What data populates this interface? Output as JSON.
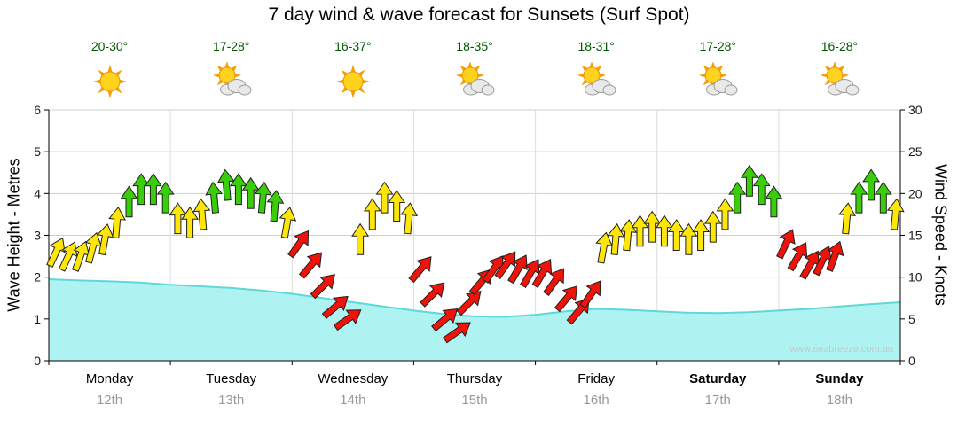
{
  "chart_data": {
    "type": "area",
    "title": "7 day wind & wave forecast for Sunsets (Surf Spot)",
    "watermark": "www.seabreeze.com.au",
    "left_axis": {
      "label": "Wave Height - Metres",
      "min": 0,
      "max": 6,
      "ticks": [
        0,
        1,
        2,
        3,
        4,
        5,
        6
      ]
    },
    "right_axis": {
      "label": "Wind Speed - Knots",
      "min": 0,
      "max": 30,
      "ticks": [
        0,
        5,
        10,
        15,
        20,
        25,
        30
      ]
    },
    "days": [
      {
        "name": "Monday",
        "date": "12th",
        "temp": "20-30°",
        "icon": "sunny",
        "bold": false
      },
      {
        "name": "Tuesday",
        "date": "13th",
        "temp": "17-28°",
        "icon": "partly-cloudy",
        "bold": false
      },
      {
        "name": "Wednesday",
        "date": "14th",
        "temp": "16-37°",
        "icon": "sunny",
        "bold": false
      },
      {
        "name": "Thursday",
        "date": "15th",
        "temp": "18-35°",
        "icon": "partly-cloudy",
        "bold": false
      },
      {
        "name": "Friday",
        "date": "16th",
        "temp": "18-31°",
        "icon": "partly-cloudy",
        "bold": false
      },
      {
        "name": "Saturday",
        "date": "17th",
        "temp": "17-28°",
        "icon": "partly-cloudy",
        "bold": true
      },
      {
        "name": "Sunday",
        "date": "18th",
        "temp": "16-28°",
        "icon": "partly-cloudy",
        "bold": true
      }
    ],
    "wave_height_m": {
      "t": [
        0,
        0.25,
        0.5,
        0.75,
        1,
        1.25,
        1.5,
        1.75,
        2,
        2.25,
        2.5,
        2.75,
        3,
        3.25,
        3.5,
        3.75,
        4,
        4.25,
        4.5,
        4.75,
        5,
        5.25,
        5.5,
        5.75,
        6,
        6.25,
        6.5,
        6.75,
        7
      ],
      "values": [
        1.95,
        1.92,
        1.9,
        1.87,
        1.82,
        1.78,
        1.74,
        1.68,
        1.6,
        1.5,
        1.4,
        1.3,
        1.2,
        1.12,
        1.06,
        1.05,
        1.1,
        1.18,
        1.24,
        1.22,
        1.18,
        1.15,
        1.14,
        1.16,
        1.2,
        1.24,
        1.3,
        1.35,
        1.4
      ]
    },
    "wind_arrows": [
      {
        "t": 0.06,
        "kn": 13,
        "dir": 25,
        "color": "yellow"
      },
      {
        "t": 0.16,
        "kn": 12.5,
        "dir": 25,
        "color": "yellow"
      },
      {
        "t": 0.26,
        "kn": 12.5,
        "dir": 20,
        "color": "yellow"
      },
      {
        "t": 0.36,
        "kn": 13.5,
        "dir": 15,
        "color": "yellow"
      },
      {
        "t": 0.46,
        "kn": 14.5,
        "dir": 10,
        "color": "yellow"
      },
      {
        "t": 0.56,
        "kn": 16.5,
        "dir": 5,
        "color": "yellow"
      },
      {
        "t": 0.66,
        "kn": 19,
        "dir": 0,
        "color": "green"
      },
      {
        "t": 0.76,
        "kn": 20.5,
        "dir": 0,
        "color": "green"
      },
      {
        "t": 0.86,
        "kn": 20.5,
        "dir": 0,
        "color": "green"
      },
      {
        "t": 0.96,
        "kn": 19.5,
        "dir": 0,
        "color": "green"
      },
      {
        "t": 1.06,
        "kn": 17,
        "dir": 0,
        "color": "yellow"
      },
      {
        "t": 1.16,
        "kn": 16.5,
        "dir": 0,
        "color": "yellow"
      },
      {
        "t": 1.26,
        "kn": 17.5,
        "dir": -5,
        "color": "yellow"
      },
      {
        "t": 1.36,
        "kn": 19.5,
        "dir": -5,
        "color": "green"
      },
      {
        "t": 1.46,
        "kn": 21,
        "dir": -5,
        "color": "green"
      },
      {
        "t": 1.56,
        "kn": 20.5,
        "dir": 0,
        "color": "green"
      },
      {
        "t": 1.66,
        "kn": 20,
        "dir": 0,
        "color": "green"
      },
      {
        "t": 1.76,
        "kn": 19.5,
        "dir": 5,
        "color": "green"
      },
      {
        "t": 1.86,
        "kn": 18.5,
        "dir": 5,
        "color": "green"
      },
      {
        "t": 1.96,
        "kn": 16.5,
        "dir": 10,
        "color": "yellow"
      },
      {
        "t": 2.06,
        "kn": 14,
        "dir": 35,
        "color": "red"
      },
      {
        "t": 2.16,
        "kn": 11.5,
        "dir": 40,
        "color": "red"
      },
      {
        "t": 2.26,
        "kn": 9,
        "dir": 45,
        "color": "red"
      },
      {
        "t": 2.36,
        "kn": 6.5,
        "dir": 50,
        "color": "red"
      },
      {
        "t": 2.46,
        "kn": 5,
        "dir": 55,
        "color": "red"
      },
      {
        "t": 2.56,
        "kn": 14.5,
        "dir": 0,
        "color": "yellow"
      },
      {
        "t": 2.66,
        "kn": 17.5,
        "dir": 0,
        "color": "yellow"
      },
      {
        "t": 2.76,
        "kn": 19.5,
        "dir": 0,
        "color": "yellow"
      },
      {
        "t": 2.86,
        "kn": 18.5,
        "dir": 0,
        "color": "yellow"
      },
      {
        "t": 2.96,
        "kn": 17,
        "dir": 5,
        "color": "yellow"
      },
      {
        "t": 3.06,
        "kn": 11,
        "dir": 40,
        "color": "red"
      },
      {
        "t": 3.16,
        "kn": 8,
        "dir": 45,
        "color": "red"
      },
      {
        "t": 3.26,
        "kn": 5,
        "dir": 50,
        "color": "red"
      },
      {
        "t": 3.36,
        "kn": 3.5,
        "dir": 55,
        "color": "red"
      },
      {
        "t": 3.46,
        "kn": 7,
        "dir": 45,
        "color": "red"
      },
      {
        "t": 3.56,
        "kn": 9.5,
        "dir": 40,
        "color": "red"
      },
      {
        "t": 3.66,
        "kn": 11,
        "dir": 35,
        "color": "red"
      },
      {
        "t": 3.76,
        "kn": 11.5,
        "dir": 35,
        "color": "red"
      },
      {
        "t": 3.86,
        "kn": 11,
        "dir": 30,
        "color": "red"
      },
      {
        "t": 3.96,
        "kn": 10.5,
        "dir": 30,
        "color": "red"
      },
      {
        "t": 4.06,
        "kn": 10.5,
        "dir": 30,
        "color": "red"
      },
      {
        "t": 4.16,
        "kn": 9.5,
        "dir": 35,
        "color": "red"
      },
      {
        "t": 4.26,
        "kn": 7.5,
        "dir": 40,
        "color": "red"
      },
      {
        "t": 4.36,
        "kn": 6,
        "dir": 40,
        "color": "red"
      },
      {
        "t": 4.46,
        "kn": 8,
        "dir": 35,
        "color": "red"
      },
      {
        "t": 4.56,
        "kn": 13.5,
        "dir": 10,
        "color": "yellow"
      },
      {
        "t": 4.66,
        "kn": 14.5,
        "dir": 5,
        "color": "yellow"
      },
      {
        "t": 4.76,
        "kn": 15,
        "dir": 5,
        "color": "yellow"
      },
      {
        "t": 4.86,
        "kn": 15.5,
        "dir": 0,
        "color": "yellow"
      },
      {
        "t": 4.96,
        "kn": 16,
        "dir": 0,
        "color": "yellow"
      },
      {
        "t": 5.06,
        "kn": 15.5,
        "dir": 0,
        "color": "yellow"
      },
      {
        "t": 5.16,
        "kn": 15,
        "dir": 0,
        "color": "yellow"
      },
      {
        "t": 5.26,
        "kn": 14.5,
        "dir": 0,
        "color": "yellow"
      },
      {
        "t": 5.36,
        "kn": 15,
        "dir": 0,
        "color": "yellow"
      },
      {
        "t": 5.46,
        "kn": 16,
        "dir": 0,
        "color": "yellow"
      },
      {
        "t": 5.56,
        "kn": 17.5,
        "dir": 0,
        "color": "yellow"
      },
      {
        "t": 5.66,
        "kn": 19.5,
        "dir": 0,
        "color": "green"
      },
      {
        "t": 5.76,
        "kn": 21.5,
        "dir": 0,
        "color": "green"
      },
      {
        "t": 5.86,
        "kn": 20.5,
        "dir": 0,
        "color": "green"
      },
      {
        "t": 5.96,
        "kn": 19,
        "dir": 0,
        "color": "green"
      },
      {
        "t": 6.06,
        "kn": 14,
        "dir": 25,
        "color": "red"
      },
      {
        "t": 6.16,
        "kn": 12.5,
        "dir": 30,
        "color": "red"
      },
      {
        "t": 6.26,
        "kn": 11.5,
        "dir": 30,
        "color": "red"
      },
      {
        "t": 6.36,
        "kn": 12,
        "dir": 25,
        "color": "red"
      },
      {
        "t": 6.46,
        "kn": 12.5,
        "dir": 20,
        "color": "red"
      },
      {
        "t": 6.56,
        "kn": 17,
        "dir": 5,
        "color": "yellow"
      },
      {
        "t": 6.66,
        "kn": 19.5,
        "dir": 0,
        "color": "green"
      },
      {
        "t": 6.76,
        "kn": 21,
        "dir": 0,
        "color": "green"
      },
      {
        "t": 6.86,
        "kn": 19.5,
        "dir": 0,
        "color": "green"
      },
      {
        "t": 6.96,
        "kn": 17.5,
        "dir": 5,
        "color": "yellow"
      }
    ],
    "colors": {
      "yellow": "#FFE609",
      "green": "#39CD0A",
      "red": "#EF1309",
      "wave_fill": "#AEF2F2",
      "wave_line": "#5FD8D8",
      "temp_text": "#005500",
      "day_text": "#000000",
      "date_text": "#999999",
      "grid": "#cfcfcf",
      "watermark_text": "#c8c8c8"
    }
  }
}
